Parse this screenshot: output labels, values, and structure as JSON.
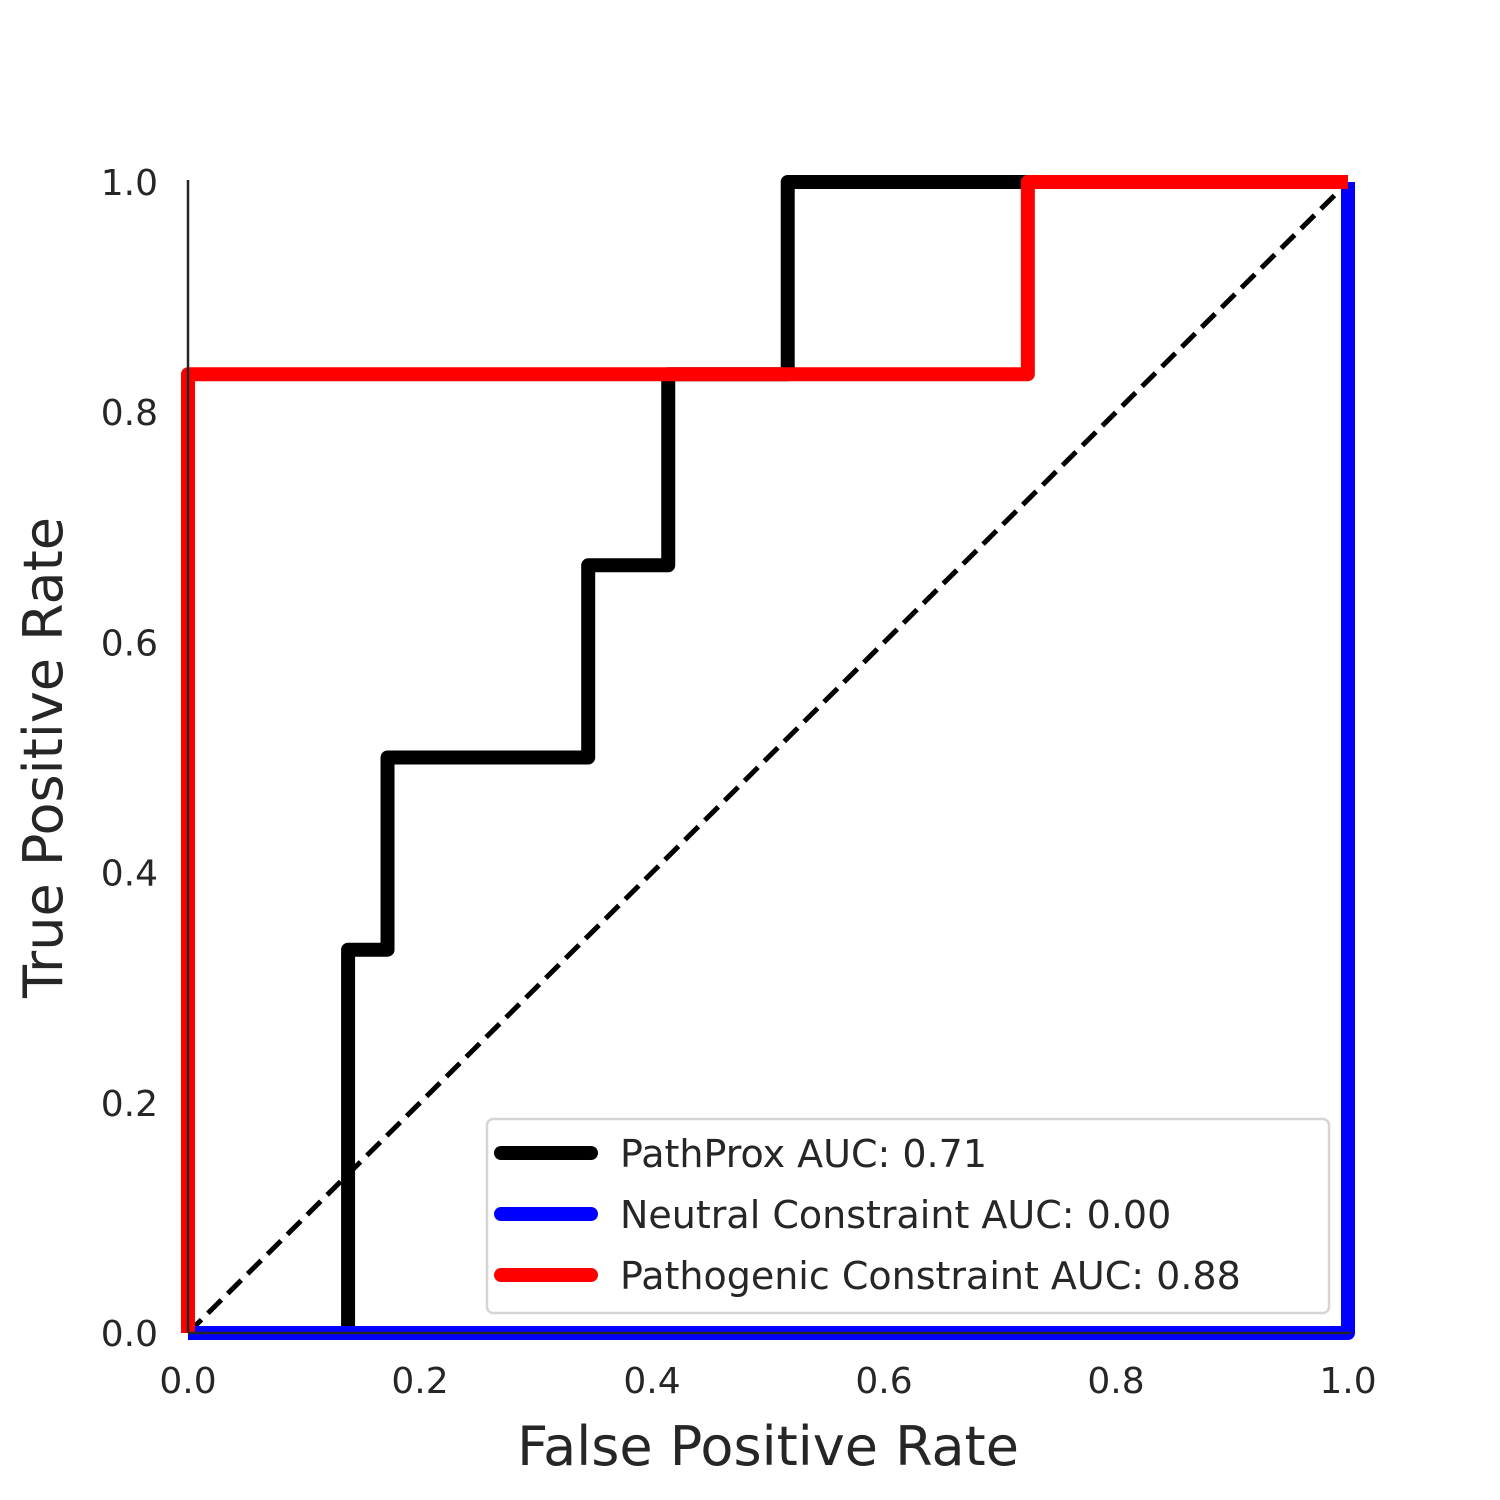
{
  "chart_data": {
    "type": "line",
    "title": "",
    "xlabel": "False Positive Rate",
    "ylabel": "True Positive Rate",
    "xlim": [
      0.0,
      1.0
    ],
    "ylim": [
      0.0,
      1.0
    ],
    "xticks": [
      "0.0",
      "0.2",
      "0.4",
      "0.6",
      "0.8",
      "1.0"
    ],
    "yticks": [
      "0.0",
      "0.2",
      "0.4",
      "0.6",
      "0.8",
      "1.0"
    ],
    "grid": false,
    "legend_position": "lower-right",
    "reference_line": {
      "x": [
        0,
        1
      ],
      "y": [
        0,
        1
      ],
      "style": "dashed",
      "color": "#000000"
    },
    "series": [
      {
        "name": "PathProx AUC:  0.71",
        "color": "#000000",
        "x": [
          0.138,
          0.138,
          0.172,
          0.172,
          0.345,
          0.345,
          0.414,
          0.414,
          0.517,
          0.517,
          1.0
        ],
        "y": [
          0.0,
          0.333,
          0.333,
          0.5,
          0.5,
          0.667,
          0.667,
          0.833,
          0.833,
          1.0,
          1.0
        ]
      },
      {
        "name": "Neutral Constraint AUC:  0.00",
        "color": "#0000ff",
        "x": [
          0.0,
          1.0,
          1.0
        ],
        "y": [
          0.0,
          0.0,
          1.0
        ]
      },
      {
        "name": "Pathogenic Constraint AUC:  0.88",
        "color": "#ff0000",
        "x": [
          0.0,
          0.0,
          0.724,
          0.724,
          1.0
        ],
        "y": [
          0.0,
          0.833,
          0.833,
          1.0,
          1.0
        ]
      }
    ]
  }
}
